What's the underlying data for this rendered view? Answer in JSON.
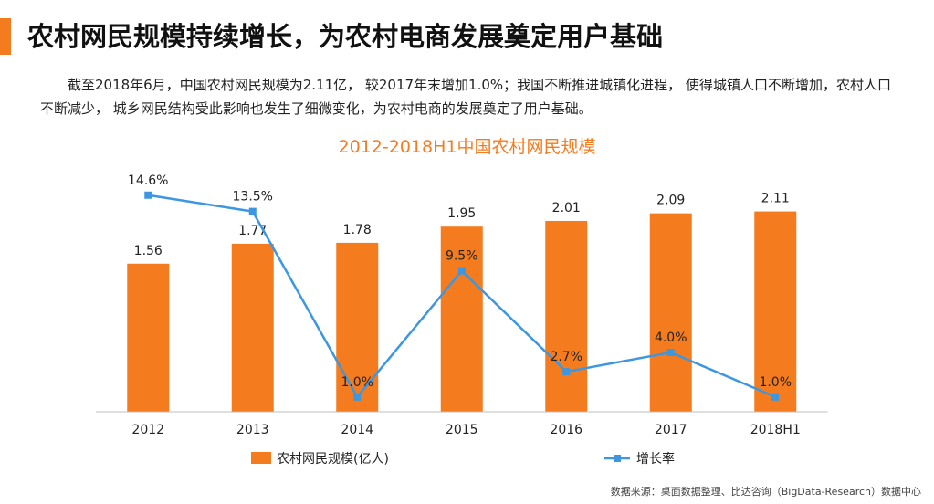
{
  "page": {
    "title": "农村网民规模持续增长，为农村电商发展奠定用户基础",
    "intro": "截至2018年6月，中国农村网民规模为2.11亿， 较2017年末增加1.0%；我国不断推进城镇化进程， 使得城镇人口不断增加，农村人口不断减少， 城乡网民结构受此影响也发生了细微变化，为农村电商的发展奠定了用户基础。",
    "source": "数据来源：桌面数据整理、比达咨询（BigData-Research）数据中心"
  },
  "colors": {
    "accent": "#F47C1E",
    "bar": "#F47C1E",
    "line": "#3C97E0",
    "title": "#F47C1E"
  },
  "chart_data": {
    "type": "bar",
    "title": "2012-2018H1中国农村网民规模",
    "categories": [
      "2012",
      "2013",
      "2014",
      "2015",
      "2016",
      "2017",
      "2018H1"
    ],
    "series": [
      {
        "name": "农村网民规模(亿人)",
        "type": "bar",
        "axis": "left",
        "values": [
          1.56,
          1.77,
          1.78,
          1.95,
          2.01,
          2.09,
          2.11
        ],
        "labels": [
          "1.56",
          "1.77",
          "1.78",
          "1.95",
          "2.01",
          "2.09",
          "2.11"
        ]
      },
      {
        "name": "增长率",
        "type": "line",
        "axis": "right",
        "values": [
          14.6,
          13.5,
          1.0,
          9.5,
          2.7,
          4.0,
          1.0
        ],
        "labels": [
          "14.6%",
          "13.5%",
          "1.0%",
          "9.5%",
          "2.7%",
          "4.0%",
          "1.0%"
        ]
      }
    ],
    "ylim_left": [
      0,
      2.5
    ],
    "ylim_right": [
      0,
      16
    ],
    "legend_position": "bottom",
    "grid": false
  }
}
